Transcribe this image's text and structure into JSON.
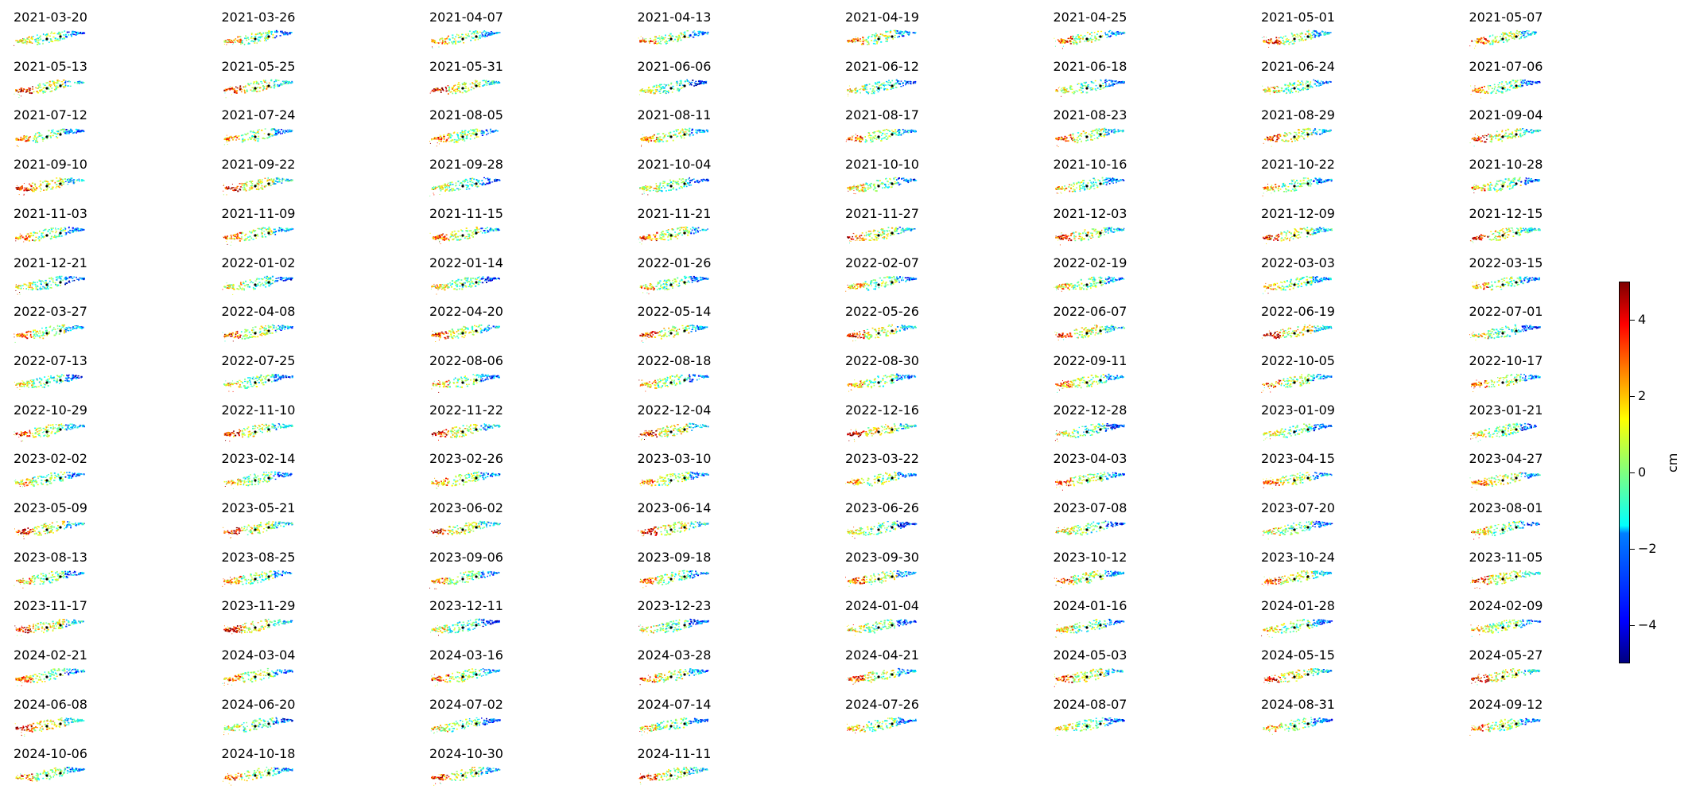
{
  "chart_data": {
    "type": "heatmap",
    "title": "",
    "xlabel": "",
    "ylabel": "",
    "colormap": "jet",
    "colorbar": {
      "label": "cm",
      "range": [
        -5,
        5
      ],
      "ticks": [
        4,
        2,
        0,
        -2,
        -4
      ],
      "tick_labels": [
        "4",
        "2",
        "0",
        "−2",
        "−4"
      ],
      "placement": "right"
    },
    "panels": [
      "2021-03-20",
      "2021-03-26",
      "2021-04-07",
      "2021-04-13",
      "2021-04-19",
      "2021-04-25",
      "2021-05-01",
      "2021-05-07",
      "2021-05-13",
      "2021-05-25",
      "2021-05-31",
      "2021-06-06",
      "2021-06-12",
      "2021-06-18",
      "2021-06-24",
      "2021-07-06",
      "2021-07-12",
      "2021-07-24",
      "2021-08-05",
      "2021-08-11",
      "2021-08-17",
      "2021-08-23",
      "2021-08-29",
      "2021-09-04",
      "2021-09-10",
      "2021-09-22",
      "2021-09-28",
      "2021-10-04",
      "2021-10-10",
      "2021-10-16",
      "2021-10-22",
      "2021-10-28",
      "2021-11-03",
      "2021-11-09",
      "2021-11-15",
      "2021-11-21",
      "2021-11-27",
      "2021-12-03",
      "2021-12-09",
      "2021-12-15",
      "2021-12-21",
      "2022-01-02",
      "2022-01-14",
      "2022-01-26",
      "2022-02-07",
      "2022-02-19",
      "2022-03-03",
      "2022-03-15",
      "2022-03-27",
      "2022-04-08",
      "2022-04-20",
      "2022-05-14",
      "2022-05-26",
      "2022-06-07",
      "2022-06-19",
      "2022-07-01",
      "2022-07-13",
      "2022-07-25",
      "2022-08-06",
      "2022-08-18",
      "2022-08-30",
      "2022-09-11",
      "2022-10-05",
      "2022-10-17",
      "2022-10-29",
      "2022-11-10",
      "2022-11-22",
      "2022-12-04",
      "2022-12-16",
      "2022-12-28",
      "2023-01-09",
      "2023-01-21",
      "2023-02-02",
      "2023-02-14",
      "2023-02-26",
      "2023-03-10",
      "2023-03-22",
      "2023-04-03",
      "2023-04-15",
      "2023-04-27",
      "2023-05-09",
      "2023-05-21",
      "2023-06-02",
      "2023-06-14",
      "2023-06-26",
      "2023-07-08",
      "2023-07-20",
      "2023-08-01",
      "2023-08-13",
      "2023-08-25",
      "2023-09-06",
      "2023-09-18",
      "2023-09-30",
      "2023-10-12",
      "2023-10-24",
      "2023-11-05",
      "2023-11-17",
      "2023-11-29",
      "2023-12-11",
      "2023-12-23",
      "2024-01-04",
      "2024-01-16",
      "2024-01-28",
      "2024-02-09",
      "2024-02-21",
      "2024-03-04",
      "2024-03-16",
      "2024-03-28",
      "2024-04-21",
      "2024-05-03",
      "2024-05-15",
      "2024-05-27",
      "2024-06-08",
      "2024-06-20",
      "2024-07-02",
      "2024-07-14",
      "2024-07-26",
      "2024-08-07",
      "2024-08-31",
      "2024-09-12",
      "2024-10-06",
      "2024-10-18",
      "2024-10-30",
      "2024-11-11"
    ],
    "grid": false,
    "layout": {
      "columns": 8,
      "rows": 16
    }
  }
}
